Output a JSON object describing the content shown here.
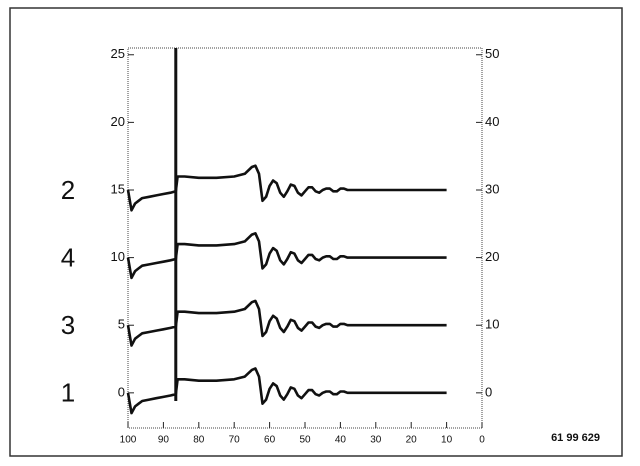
{
  "chart_data": {
    "type": "line",
    "x": [
      100,
      99,
      98,
      97,
      96,
      94,
      92,
      90,
      88,
      86.5,
      86,
      84,
      80,
      75,
      70,
      67,
      65,
      64,
      63,
      62,
      61,
      60,
      59,
      58,
      57,
      56,
      55,
      54,
      53,
      52,
      51,
      50,
      49,
      48,
      47,
      46,
      45,
      44,
      43,
      42,
      41,
      40,
      39,
      38,
      35,
      30,
      20,
      10
    ],
    "series": [
      {
        "name": "1",
        "color": "#111111",
        "values": [
          0,
          -1.5,
          -1.0,
          -0.8,
          -0.6,
          -0.5,
          -0.4,
          -0.3,
          -0.2,
          -0.1,
          1.0,
          1.0,
          0.9,
          0.9,
          1.0,
          1.2,
          1.7,
          1.8,
          1.2,
          -0.8,
          -0.5,
          0.3,
          0.7,
          0.5,
          -0.2,
          -0.5,
          -0.1,
          0.4,
          0.3,
          -0.2,
          -0.4,
          -0.1,
          0.2,
          0.2,
          -0.1,
          -0.2,
          0,
          0.1,
          0.1,
          -0.1,
          -0.1,
          0.1,
          0.1,
          0,
          0,
          0,
          0,
          0
        ]
      },
      {
        "name": "3",
        "color": "#111111",
        "values": [
          5,
          3.5,
          4,
          4.2,
          4.4,
          4.5,
          4.6,
          4.7,
          4.8,
          4.9,
          6,
          6,
          5.9,
          5.9,
          6,
          6.2,
          6.7,
          6.8,
          6.2,
          4.2,
          4.5,
          5.3,
          5.7,
          5.5,
          4.8,
          4.5,
          4.9,
          5.4,
          5.3,
          4.8,
          4.6,
          4.9,
          5.2,
          5.2,
          4.9,
          4.8,
          5,
          5.1,
          5.1,
          4.9,
          4.9,
          5.1,
          5.1,
          5,
          5,
          5,
          5,
          5
        ]
      },
      {
        "name": "4",
        "color": "#111111",
        "values": [
          10,
          8.5,
          9,
          9.2,
          9.4,
          9.5,
          9.6,
          9.7,
          9.8,
          9.9,
          11,
          11,
          10.9,
          10.9,
          11,
          11.2,
          11.7,
          11.8,
          11.2,
          9.2,
          9.5,
          10.3,
          10.7,
          10.5,
          9.8,
          9.5,
          9.9,
          10.4,
          10.3,
          9.8,
          9.6,
          9.9,
          10.2,
          10.2,
          9.9,
          9.8,
          10,
          10.1,
          10.1,
          9.9,
          9.9,
          10.1,
          10.1,
          10,
          10,
          10,
          10,
          10
        ]
      },
      {
        "name": "2",
        "color": "#111111",
        "values": [
          15,
          13.5,
          14,
          14.2,
          14.4,
          14.5,
          14.6,
          14.7,
          14.8,
          14.9,
          16,
          16,
          15.9,
          15.9,
          16,
          16.2,
          16.7,
          16.8,
          16.2,
          14.2,
          14.5,
          15.3,
          15.7,
          15.5,
          14.8,
          14.5,
          14.9,
          15.4,
          15.3,
          14.8,
          14.6,
          14.9,
          15.2,
          15.2,
          14.9,
          14.8,
          15,
          15.1,
          15.1,
          14.9,
          14.9,
          15.1,
          15.1,
          15,
          15,
          15,
          15,
          15
        ]
      }
    ],
    "vline": {
      "x": 86.5,
      "ymin": -0.6,
      "ymax": 25.5
    },
    "xlim": [
      100,
      0
    ],
    "xticks": [
      100,
      90,
      80,
      70,
      60,
      50,
      40,
      30,
      20,
      10,
      0
    ],
    "ylim": [
      -2.6,
      25.5
    ],
    "yticks": [
      0,
      5,
      10,
      15,
      20,
      25
    ],
    "y2lim": [
      -5.2,
      51
    ],
    "y2ticks": [
      0,
      10,
      20,
      30,
      40,
      50
    ],
    "figure_id": "61 99 629"
  }
}
